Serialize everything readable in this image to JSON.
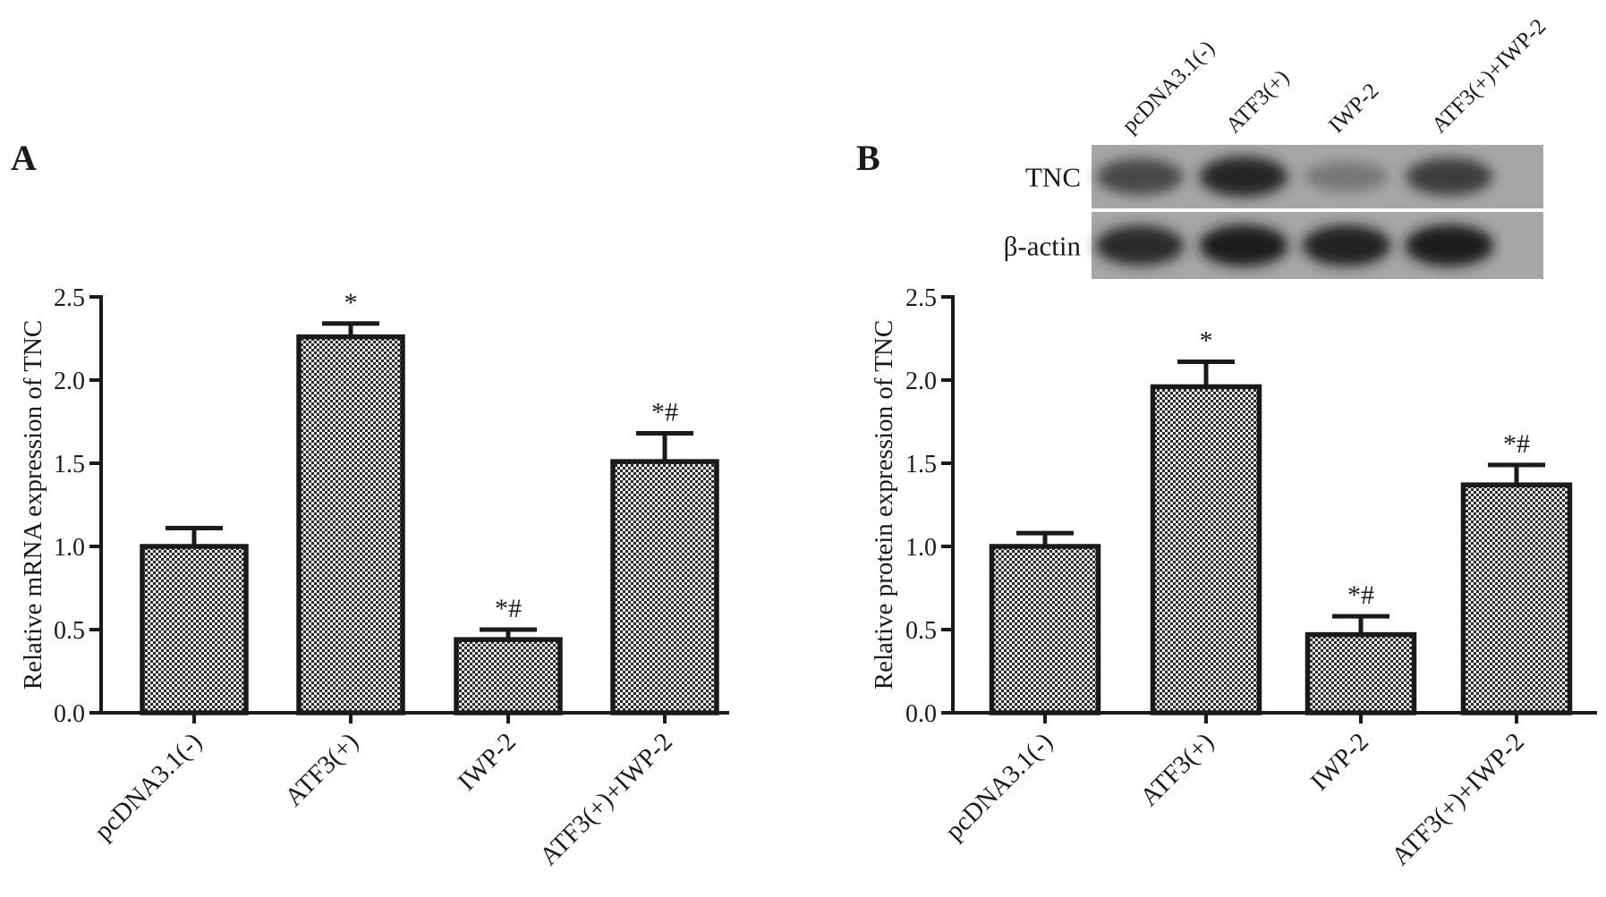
{
  "chart_data": [
    {
      "type": "bar",
      "panel": "A",
      "categories": [
        "pcDNA3.1(-)",
        "ATF3(+)",
        "IWP-2",
        "ATF3(+)+IWP-2"
      ],
      "values": [
        1.0,
        2.26,
        0.44,
        1.51
      ],
      "errors": [
        0.11,
        0.08,
        0.06,
        0.17
      ],
      "annotations": [
        "",
        "*",
        "*#",
        "*#"
      ],
      "ylabel": "Relative mRNA expression of  TNC",
      "ylim": [
        0,
        2.5
      ],
      "yticks": [
        "0.0",
        "0.5",
        "1.0",
        "1.5",
        "2.0",
        "2.5"
      ],
      "grid": false,
      "legend": "none"
    },
    {
      "type": "bar",
      "panel": "B",
      "categories": [
        "pcDNA3.1(-)",
        "ATF3(+)",
        "IWP-2",
        "ATF3(+)+IWP-2"
      ],
      "values": [
        1.0,
        1.96,
        0.47,
        1.37
      ],
      "errors": [
        0.08,
        0.15,
        0.11,
        0.12
      ],
      "annotations": [
        "",
        "*",
        "*#",
        "*#"
      ],
      "ylabel": "Relative protein expression of  TNC",
      "ylim": [
        0,
        2.5
      ],
      "yticks": [
        "0.0",
        "0.5",
        "1.0",
        "1.5",
        "2.0",
        "2.5"
      ],
      "grid": false,
      "legend": "none"
    }
  ],
  "blot": {
    "lanes": [
      "pcDNA3.1(-)",
      "ATF3(+)",
      "IWP-2",
      "ATF3(+)+IWP-2"
    ],
    "rows": [
      {
        "label": "TNC",
        "intensities": [
          0.72,
          0.9,
          0.45,
          0.78
        ]
      },
      {
        "label": "β-actin",
        "intensities": [
          0.88,
          0.95,
          0.92,
          0.95
        ]
      }
    ]
  }
}
